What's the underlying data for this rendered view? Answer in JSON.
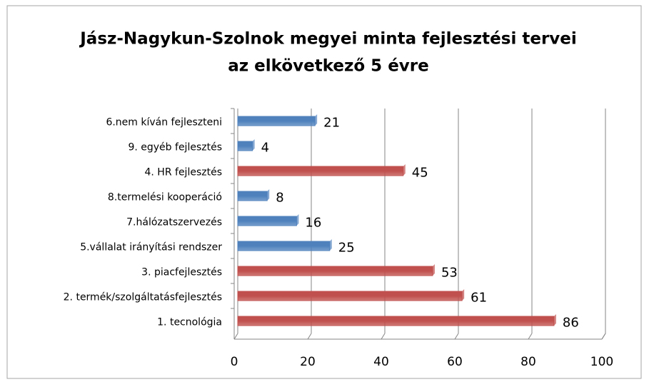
{
  "chart_data": {
    "type": "hbar",
    "title": [
      "Jász-Nagykun-Szolnok megyei minta fejlesztési tervei",
      "az elkövetkező 5 évre"
    ],
    "categories": [
      "6.nem kíván fejleszteni",
      "9. egyéb fejlesztés",
      "4. HR fejlesztés",
      "8.termelési kooperáció",
      "7.hálózatszervezés",
      "5.vállalat irányítási rendszer",
      "3. piacfejlesztés",
      "2. termék/szolgáltatásfejlesztés",
      "1. tecnológia"
    ],
    "values": [
      21,
      4,
      45,
      8,
      16,
      25,
      53,
      61,
      86
    ],
    "colors": [
      "#4f81bd",
      "#4f81bd",
      "#c0504d",
      "#4f81bd",
      "#4f81bd",
      "#4f81bd",
      "#c0504d",
      "#c0504d",
      "#c0504d"
    ],
    "xlim": [
      0,
      100
    ],
    "xticks": [
      0,
      20,
      40,
      60,
      80,
      100
    ],
    "grid": true
  }
}
